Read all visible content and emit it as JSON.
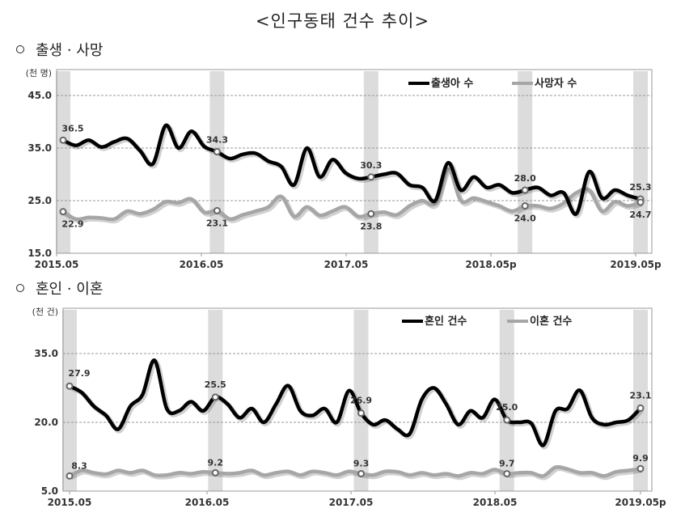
{
  "title": "<인구동태 건수 추이>",
  "sections": [
    {
      "label": "출생 · 사망"
    },
    {
      "label": "혼인 · 이혼"
    }
  ],
  "chart_data": [
    {
      "type": "line",
      "title": "출생 · 사망",
      "ylabel": "(천 명)",
      "ylim": [
        15,
        45
      ],
      "yticks": [
        "15.0",
        "25.0",
        "35.0",
        "45.0"
      ],
      "xticks": [
        "2015.05",
        "2016.05",
        "2017.05",
        "2018.05p",
        "2019.05p"
      ],
      "grid": true,
      "legend_position": "top-right",
      "series": [
        {
          "name": "출생아 수",
          "color": "#000000",
          "values": [
            36.5,
            35.5,
            36.5,
            35.2,
            36.2,
            36.8,
            34.5,
            32.0,
            39.3,
            35.0,
            38.2,
            35.3,
            34.3,
            33.0,
            33.8,
            34.0,
            32.5,
            31.5,
            28.0,
            35.0,
            29.5,
            32.8,
            30.3,
            29.2,
            29.5,
            30.0,
            30.2,
            28.0,
            27.5,
            25.0,
            32.2,
            27.0,
            29.5,
            27.5,
            28.0,
            26.5,
            27.0,
            27.5,
            26.0,
            26.5,
            22.5,
            30.5,
            25.5,
            27.0,
            26.0,
            25.3
          ],
          "labels": {
            "2015.05": "36.5",
            "2016.05": "34.3",
            "2017.05": "30.3",
            "2018.05p": "28.0",
            "2019.05p": "25.3"
          }
        },
        {
          "name": "사망자 수",
          "color": "#a6a6a6",
          "values": [
            22.9,
            21.5,
            21.8,
            21.7,
            21.5,
            23.0,
            22.5,
            23.3,
            24.8,
            24.6,
            25.3,
            22.8,
            23.1,
            21.5,
            22.3,
            23.0,
            23.8,
            25.8,
            22.0,
            23.8,
            22.2,
            23.0,
            23.8,
            22.0,
            22.5,
            22.8,
            22.3,
            24.0,
            25.0,
            24.5,
            31.0,
            25.0,
            25.5,
            24.8,
            24.0,
            23.0,
            24.0,
            24.0,
            23.5,
            24.5,
            26.5,
            27.0,
            23.0,
            24.8,
            24.0,
            24.7
          ],
          "labels": {
            "2015.05": "22.9",
            "2016.05": "23.1",
            "2017.05": "23.8",
            "2018.05p": "24.0",
            "2019.05p": "24.7"
          }
        }
      ]
    },
    {
      "type": "line",
      "title": "혼인 · 이혼",
      "ylabel": "(천 건)",
      "ylim": [
        5,
        40
      ],
      "yticks": [
        "5.0",
        "20.0",
        "35.0"
      ],
      "xticks": [
        "2015.05",
        "2016.05",
        "2017.05",
        "2018.05",
        "2019.05p"
      ],
      "grid": true,
      "legend_position": "top-right",
      "series": [
        {
          "name": "혼인 건수",
          "color": "#000000",
          "values": [
            27.9,
            26.5,
            23.5,
            21.5,
            18.5,
            23.5,
            26.0,
            33.5,
            23.0,
            22.5,
            24.5,
            22.5,
            25.5,
            24.0,
            21.0,
            23.0,
            20.0,
            24.0,
            28.0,
            22.5,
            21.5,
            23.0,
            20.0,
            26.9,
            22.0,
            19.5,
            20.5,
            18.5,
            17.5,
            25.0,
            27.5,
            24.0,
            19.5,
            22.5,
            21.0,
            25.0,
            20.5,
            20.0,
            19.8,
            15.0,
            22.5,
            23.0,
            27.0,
            21.0,
            19.5,
            20.0,
            20.5,
            23.1
          ],
          "labels": {
            "2015.05": "27.9",
            "2016.05": "25.5",
            "2017.05": "26.9",
            "2018.05": "25.0",
            "2019.05p": "23.1"
          }
        },
        {
          "name": "이혼 건수",
          "color": "#a6a6a6",
          "values": [
            8.3,
            9.5,
            9.0,
            8.7,
            9.5,
            9.0,
            9.5,
            8.5,
            8.5,
            9.0,
            8.8,
            9.2,
            9.0,
            8.8,
            9.0,
            9.5,
            8.5,
            9.0,
            9.3,
            8.5,
            9.3,
            9.0,
            8.5,
            9.3,
            8.8,
            8.5,
            9.3,
            9.2,
            8.5,
            9.0,
            8.5,
            8.8,
            8.3,
            9.0,
            8.8,
            9.7,
            8.8,
            9.0,
            9.0,
            8.3,
            10.2,
            9.8,
            9.0,
            9.0,
            8.3,
            9.2,
            9.5,
            9.9
          ],
          "labels": {
            "2015.05": "8.3",
            "2016.05": "9.2",
            "2017.05": "9.3",
            "2018.05": "9.7",
            "2019.05p": "9.9"
          }
        }
      ]
    }
  ]
}
